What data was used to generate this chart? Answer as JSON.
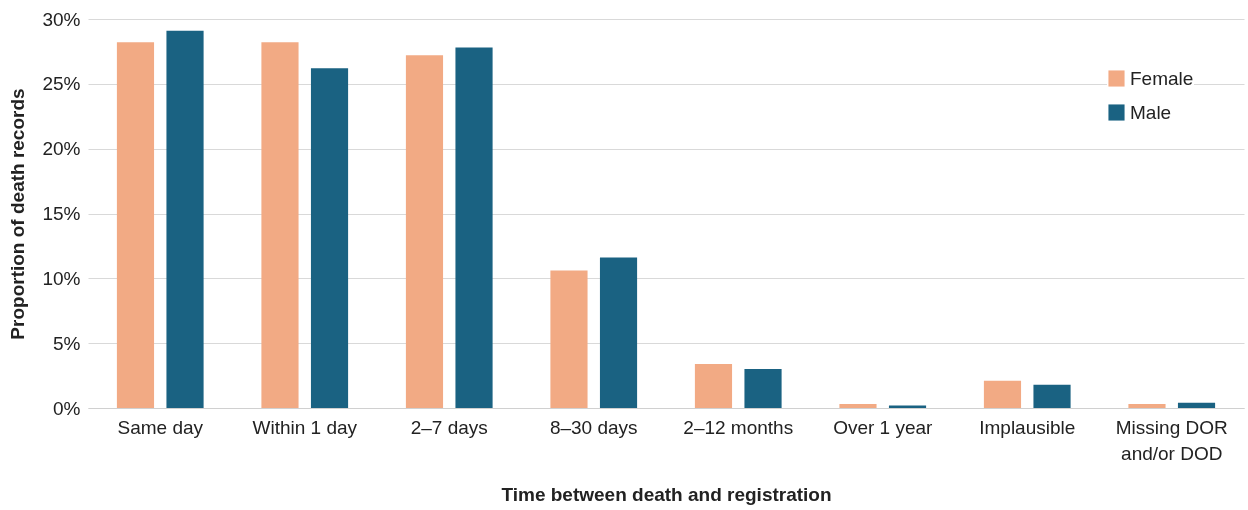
{
  "chart_data": {
    "type": "bar",
    "xlabel": "Time between death and registration",
    "ylabel": "Proportion of death records",
    "categories": [
      "Same day",
      "Within 1 day",
      "2–7 days",
      "8–30 days",
      "2–12 months",
      "Over 1 year",
      "Implausible",
      "Missing DOR and/or DOD"
    ],
    "series": [
      {
        "name": "Female",
        "color": "#f2aa84",
        "values": [
          28.2,
          28.2,
          27.2,
          10.6,
          3.4,
          0.3,
          2.1,
          0.3
        ]
      },
      {
        "name": "Male",
        "color": "#1a6282",
        "values": [
          29.1,
          26.2,
          27.8,
          11.6,
          3.0,
          0.2,
          1.8,
          0.4
        ]
      }
    ],
    "ylim": [
      0,
      30
    ],
    "yticks": [
      {
        "value": 0,
        "label": "0%"
      },
      {
        "value": 5,
        "label": "5%"
      },
      {
        "value": 10,
        "label": "10%"
      },
      {
        "value": 15,
        "label": "15%"
      },
      {
        "value": 20,
        "label": "20%"
      },
      {
        "value": 25,
        "label": "25%"
      },
      {
        "value": 30,
        "label": "30%"
      }
    ],
    "grid": "y",
    "legend": "top right"
  }
}
